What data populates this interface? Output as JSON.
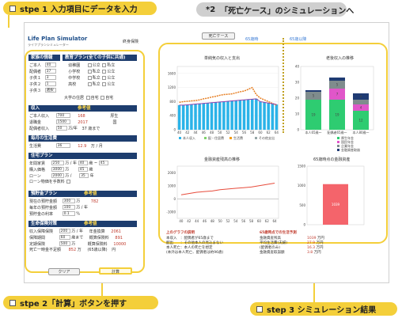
{
  "callouts": {
    "step1": "stpe 1 入力項目にデータを入力",
    "step2": "stpe 2「計算」ボタンを押す",
    "step3": "step 3 シミュレーション結果",
    "note2_mark": "*2",
    "note2_text": "「死亡ケース」のシミュレーションへ",
    "note1_mark": "*1"
  },
  "app": {
    "title": "Life Plan Simulator",
    "subtitle": "ライフプランシミュレーター",
    "head_right": "終身保険",
    "death_case_button": "死亡ケース"
  },
  "form": {
    "family_header": "家族の情報",
    "education_header": "教育プラン(全ての子供に共通)",
    "family_rows": [
      {
        "label": "ご本人",
        "age": "40",
        "school": "幼稚園",
        "opt1": "公立",
        "opt2": "私立"
      },
      {
        "label": "配偶者",
        "age": "37",
        "school": "小学校",
        "opt1": "私立",
        "opt2": "公立"
      },
      {
        "label": "子供１",
        "age": "3",
        "school": "中学校",
        "opt1": "私立",
        "opt2": "公立"
      },
      {
        "label": "子供２",
        "age": "1",
        "school": "高校",
        "opt1": "私立",
        "opt2": "公立"
      },
      {
        "label": "子供３",
        "age": "選択",
        "school": "",
        "opt1": "",
        "opt2": ""
      }
    ],
    "univ_label": "大学の住居",
    "univ_opt1": "自宅",
    "univ_opt2": "自宅",
    "income_header": "収入",
    "income_ref": "参考値",
    "income_rows": [
      {
        "label": "ご本人収入",
        "v1": "700",
        "v2": "168",
        "v3": "厚生"
      },
      {
        "label": "退職金",
        "v1": "1500",
        "v2": "2017",
        "v3": "国"
      },
      {
        "label": "配偶者収入",
        "v1": "50",
        "v2": "万/年",
        "v3": "37 歳まで"
      }
    ],
    "living_header": "毎月の生活費",
    "living_label": "生活費",
    "living_value": "36",
    "living_ref": "12.9",
    "living_unit": "万 / 月",
    "housing_header": "住宅プラン",
    "housing_rows": [
      {
        "label": "年間家賃",
        "v1": "250",
        "u": "万 / 年",
        "v2": "40",
        "u2": "歳 ~",
        "v3": "45"
      },
      {
        "label": "購入価格",
        "v1": "3000",
        "u": "万",
        "v2": "45",
        "u2": "歳",
        "v3": ""
      },
      {
        "label": "ローン",
        "v1": "2000",
        "u": "万 /",
        "v2": "35",
        "u2": "年",
        "v3": ""
      },
      {
        "label": "ローン物価を手数料",
        "v1": "",
        "u": "",
        "v2": "",
        "u2": "",
        "v3": ""
      }
    ],
    "savings_header": "預貯金プラン",
    "savings_ref": "参考値",
    "savings_rows": [
      {
        "label": "現在の預貯金額",
        "v1": "300",
        "u": "万",
        "ref": "782"
      },
      {
        "label": "毎年の預貯金額",
        "v1": "100",
        "u": "万 / 年",
        "ref": ""
      },
      {
        "label": "預貯金の利率",
        "v1": "0.1",
        "u": "%",
        "ref": ""
      }
    ],
    "insurance_header": "生命保険対策",
    "insurance_ref": "参考値",
    "insurance_rows": [
      {
        "label": "収入保障保険",
        "v1": "200",
        "u": "万 / 年",
        "r1": "年金換算",
        "r2": "2061"
      },
      {
        "label": "保障期間",
        "v1": "60",
        "u": "歳まで",
        "r1": "概算保険料",
        "r2": "891"
      },
      {
        "label": "定期保険",
        "v1": "500",
        "u": "万",
        "r1": "概算保険料",
        "r2": "10000"
      },
      {
        "label": "死亡一時金不足額",
        "v1": "852",
        "u": "万",
        "r1": "(65歳以降)",
        "r2": "円"
      }
    ],
    "clear_button": "クリア",
    "calc_button": "計算"
  },
  "charts": {
    "line_bar_title": "単純気の収入と支出",
    "stacked_title": "老後収入の推移",
    "balance_title": "金融資産残高の推移",
    "single_title": "65歳時点の金融資産",
    "label_65": "65歳時",
    "label_65_after": "65歳以降",
    "legend_bottom": [
      "本人収入",
      "配・住居費",
      "生活費",
      "その他支出"
    ],
    "stacked_legend": [
      "厚生年金",
      "国民年金",
      "企業年金",
      "金融資産取崩"
    ],
    "stacked_categories": [
      "本人65歳～",
      "配偶者65歳～",
      "本人80歳～"
    ],
    "stacked_segments": [
      {
        "name": "厚生年金",
        "color": "#2ecc71"
      },
      {
        "name": "国民年金",
        "color": "#e056c9"
      },
      {
        "name": "企業年金",
        "color": "#7f8c8d"
      },
      {
        "name": "金融資産取崩",
        "color": "#1f3b73"
      }
    ],
    "x_ticks": [
      "40",
      "42",
      "44",
      "46",
      "48",
      "50",
      "52",
      "54",
      "56",
      "58",
      "60",
      "62",
      "64"
    ],
    "single_value": "1039",
    "single_color": "#f4646b"
  },
  "chart_data": [
    {
      "type": "bar",
      "title": "単純気の収入と支出",
      "x": [
        "40",
        "41",
        "42",
        "43",
        "44",
        "45",
        "46",
        "47",
        "48",
        "49",
        "50",
        "51",
        "52",
        "53",
        "54",
        "55",
        "56",
        "57",
        "58",
        "59",
        "60",
        "61",
        "62",
        "63",
        "64"
      ],
      "ylim": [
        0,
        1800
      ],
      "series": [
        {
          "name": "本人収入",
          "values": [
            700,
            700,
            710,
            720,
            730,
            740,
            750,
            760,
            770,
            780,
            790,
            800,
            810,
            820,
            830,
            840,
            850,
            860,
            870,
            880,
            800,
            780,
            760,
            740,
            720
          ]
        },
        {
          "name": "支出合計",
          "values": [
            780,
            800,
            810,
            820,
            830,
            850,
            880,
            900,
            930,
            950,
            980,
            1000,
            1010,
            1020,
            1050,
            1080,
            1100,
            1150,
            1200,
            1000,
            900,
            850,
            800,
            750,
            700
          ]
        }
      ]
    },
    {
      "type": "bar",
      "title": "老後収入の推移",
      "categories": [
        "本人65歳～",
        "配偶者65歳～",
        "本人80歳～"
      ],
      "ylim": [
        0,
        40
      ],
      "series": [
        {
          "name": "厚生年金",
          "values": [
            19,
            19,
            12
          ]
        },
        {
          "name": "国民年金",
          "values": [
            0,
            7,
            4
          ]
        },
        {
          "name": "企業年金",
          "values": [
            5,
            5,
            3
          ]
        },
        {
          "name": "金融資産取崩",
          "values": [
            1,
            2,
            4
          ]
        }
      ]
    },
    {
      "type": "line",
      "title": "金融資産残高の推移",
      "x": [
        "40",
        "42",
        "44",
        "46",
        "48",
        "50",
        "52",
        "54",
        "56",
        "58",
        "60",
        "62",
        "64"
      ],
      "ylim": [
        -1500,
        2500
      ],
      "series": [
        {
          "name": "金融資産残高",
          "values": [
            300,
            400,
            500,
            550,
            600,
            700,
            750,
            800,
            850,
            900,
            1000,
            1100,
            1200
          ]
        }
      ]
    },
    {
      "type": "bar",
      "title": "65歳時点の金融資産",
      "categories": [
        ""
      ],
      "values": [
        1039
      ],
      "ylim": [
        0,
        1500
      ]
    }
  ],
  "explanation": {
    "left_title": "上のグラフの説明",
    "left_lines": [
      "本収入　：配偶者が65歳まで",
      "配出　　：その他本人の見込まない",
      "本人死亡：本人の死亡を想定",
      "(本外は本人死亡、配偶者は約96歳)"
    ],
    "right_title": "65歳時点での生活予測",
    "right_lines": [
      {
        "label": "金融資産残高",
        "value": "1039",
        "unit": "万円"
      },
      {
        "label": "平均生活費(夫婦)",
        "value": "27.9",
        "unit": "万円"
      },
      {
        "label": "(配偶者のみ)",
        "value": "16.3",
        "unit": "万円"
      },
      {
        "label": "金融資産取崩額",
        "value": "3.8",
        "unit": "万円"
      }
    ]
  }
}
